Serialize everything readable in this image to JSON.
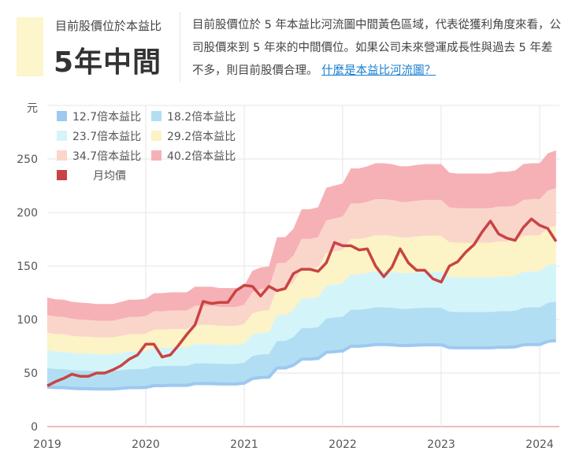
{
  "header": {
    "subtitle": "目前股價位於本益比",
    "status": "5年中間",
    "status_color": "#fdf5cc",
    "description": "目前股價位於 5 年本益比河流圖中間黃色區域，代表從獲利角度來看，公司股價來到 5 年來的中間價位。如果公司未來營運成長性與過去 5 年差不多，則目前股價合理。",
    "link": "什麼是本益比河流圖？"
  },
  "chart_data": {
    "type": "area",
    "ylabel": "元",
    "ylim": [
      0,
      300
    ],
    "yticks": [
      0,
      50,
      100,
      150,
      200,
      250
    ],
    "xticks": [
      "2019",
      "2020",
      "2021",
      "2022",
      "2023",
      "2024"
    ],
    "x_start": "2019-01",
    "x_end": "2024-03",
    "x_unit": "month",
    "grid": true,
    "legend_position": "top-left",
    "pe_multiples": [
      12.7,
      18.2,
      23.7,
      29.2,
      34.7,
      40.2
    ],
    "legend": [
      {
        "label": "12.7倍本益比",
        "color": "#9dc9f0"
      },
      {
        "label": "18.2倍本益比",
        "color": "#b2def3"
      },
      {
        "label": "23.7倍本益比",
        "color": "#d3f5f9"
      },
      {
        "label": "29.2倍本益比",
        "color": "#fcf3c6"
      },
      {
        "label": "34.7倍本益比",
        "color": "#fad6ca"
      },
      {
        "label": "40.2倍本益比",
        "color": "#f6b1b6"
      },
      {
        "label": "月均價",
        "color": "#c84444"
      }
    ],
    "eps": [
      3.0,
      2.96,
      2.95,
      2.9,
      2.88,
      2.87,
      2.85,
      2.85,
      2.85,
      2.9,
      2.95,
      2.95,
      2.97,
      3.1,
      3.1,
      3.12,
      3.12,
      3.12,
      3.25,
      3.25,
      3.25,
      3.22,
      3.22,
      3.22,
      3.28,
      3.62,
      3.7,
      3.72,
      4.4,
      4.4,
      4.6,
      5.05,
      5.05,
      5.1,
      5.55,
      5.6,
      5.65,
      6.0,
      6.0,
      6.05,
      6.12,
      6.12,
      6.1,
      6.05,
      6.05,
      6.08,
      6.1,
      6.1,
      6.1,
      5.9,
      5.88,
      5.88,
      5.88,
      5.88,
      5.88,
      5.92,
      5.92,
      5.95,
      6.1,
      6.12,
      6.12,
      6.35,
      6.42
    ],
    "monthly_price": [
      38,
      42,
      45,
      49,
      47,
      47,
      50,
      50,
      53,
      57,
      63,
      67,
      77,
      77,
      65,
      67,
      76,
      86,
      95,
      117,
      115,
      116,
      116,
      127,
      132,
      131,
      122,
      131,
      127,
      129,
      143,
      147,
      147,
      145,
      153,
      172,
      169,
      169,
      165,
      166,
      150,
      140,
      149,
      166,
      153,
      146,
      146,
      138,
      135,
      150,
      154,
      163,
      170,
      182,
      192,
      180,
      176,
      174,
      186,
      194,
      188,
      185,
      173
    ]
  }
}
